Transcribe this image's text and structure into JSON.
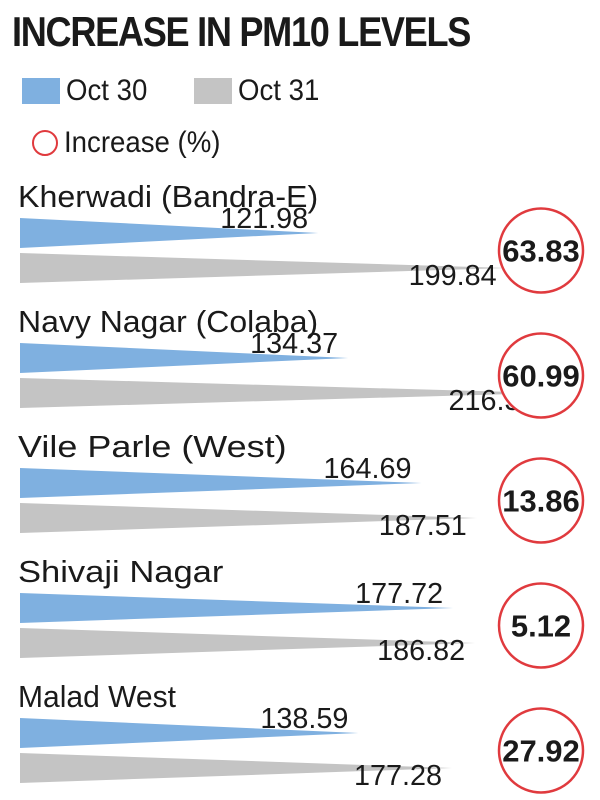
{
  "chart_data": {
    "type": "bar",
    "title": "INCREASE IN PM10 LEVELS",
    "categories": [
      "Kherwadi (Bandra-E)",
      "Navy Nagar (Colaba)",
      "Vile Parle (West)",
      "Shivaji Nagar",
      "Malad West"
    ],
    "series": [
      {
        "name": "Oct 30",
        "values": [
          121.98,
          134.37,
          164.69,
          177.72,
          138.59
        ]
      },
      {
        "name": "Oct 31",
        "values": [
          199.84,
          216.32,
          187.51,
          186.82,
          177.28
        ]
      }
    ],
    "increase": {
      "label": "Increase (%)",
      "values": [
        63.83,
        60.99,
        13.86,
        5.12,
        27.92
      ]
    },
    "colors": {
      "oct30": "#7fb0e0",
      "oct31": "#c4c4c4",
      "circle": "#e03a3e"
    },
    "legend_position": "top-left",
    "grid": false
  }
}
